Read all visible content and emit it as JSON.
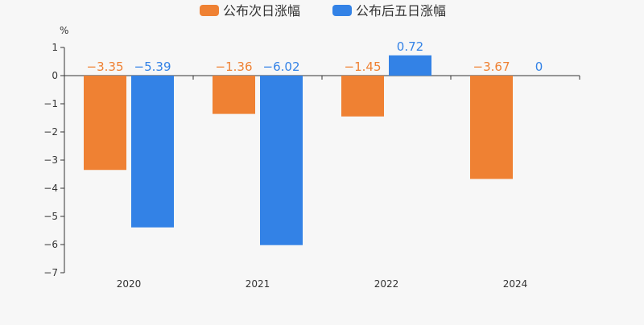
{
  "chart_data": {
    "type": "bar",
    "unit": "%",
    "categories": [
      "2020",
      "2021",
      "2022",
      "2024"
    ],
    "series": [
      {
        "name": "公布次日涨幅",
        "color": "#ef8133",
        "values": [
          -3.35,
          -1.36,
          -1.45,
          -3.67
        ]
      },
      {
        "name": "公布后五日涨幅",
        "color": "#3382e6",
        "values": [
          -5.39,
          -6.02,
          0.72,
          0
        ]
      }
    ],
    "ylim": [
      -7,
      1
    ],
    "yticks": [
      1,
      0,
      -1,
      -2,
      -3,
      -4,
      -5,
      -6,
      -7
    ],
    "grid": false,
    "legend_position": "top-center"
  }
}
